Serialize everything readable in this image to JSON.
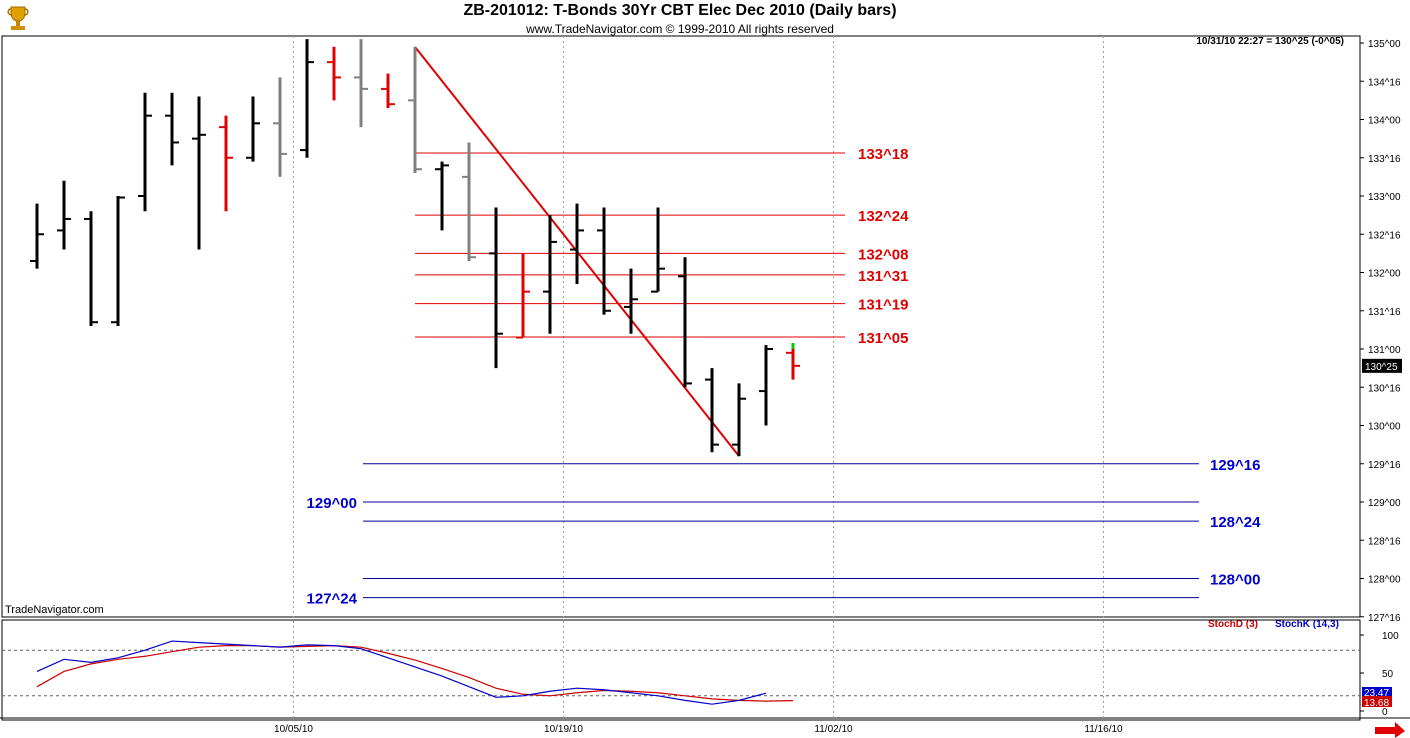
{
  "header": {
    "title": "ZB-201012:  T-Bonds 30Yr CBT Elec Dec 2010  (Daily bars)",
    "subtitle": "www.TradeNavigator.com © 1999-2010 All rights reserved",
    "readout": "10/31/10 22:27 = 130^25 (-0^05)",
    "brand": "TradeNavigator.com",
    "logo_icon": "trophy-icon"
  },
  "colors": {
    "up_bar": "#000000",
    "down_bar": "#e00000",
    "gray_bar": "#808080",
    "resistance": "#e00000",
    "support": "#000099",
    "stochD": "#cc0000",
    "stochK": "#0000cc",
    "grid": "#a0a0a0"
  },
  "chart_data": [
    {
      "type": "ohlc",
      "title": "ZB-201012:  T-Bonds 30Yr CBT Elec Dec 2010  (Daily bars)",
      "ylim": [
        127.375,
        135.0625
      ],
      "y_ticks": [
        {
          "v": 135.0,
          "label": "135^00"
        },
        {
          "v": 134.5,
          "label": "134^16"
        },
        {
          "v": 134.0,
          "label": "134^00"
        },
        {
          "v": 133.5,
          "label": "133^16"
        },
        {
          "v": 133.0,
          "label": "133^00"
        },
        {
          "v": 132.5,
          "label": "132^16"
        },
        {
          "v": 132.0,
          "label": "132^00"
        },
        {
          "v": 131.5,
          "label": "131^16"
        },
        {
          "v": 131.0,
          "label": "131^00"
        },
        {
          "v": 130.5,
          "label": "130^16"
        },
        {
          "v": 130.0,
          "label": "130^00"
        },
        {
          "v": 129.5,
          "label": "129^16"
        },
        {
          "v": 129.0,
          "label": "129^00"
        },
        {
          "v": 128.5,
          "label": "128^16"
        },
        {
          "v": 128.0,
          "label": "128^00"
        },
        {
          "v": 127.5,
          "label": "127^16"
        }
      ],
      "x_ticks": [
        {
          "i": 9.5,
          "label": "10/05/10"
        },
        {
          "i": 19.5,
          "label": "10/19/10"
        },
        {
          "i": 29.5,
          "label": "11/02/10"
        },
        {
          "i": 39.5,
          "label": "11/16/10"
        }
      ],
      "last_price": {
        "v": 130.78,
        "label": "130^25"
      },
      "bars": [
        {
          "i": 0.0,
          "o": 132.15,
          "h": 132.9,
          "l": 132.05,
          "c": 132.5,
          "color": "up"
        },
        {
          "i": 1.0,
          "o": 132.55,
          "h": 133.2,
          "l": 132.3,
          "c": 132.7,
          "color": "up"
        },
        {
          "i": 2.0,
          "o": 132.7,
          "h": 132.8,
          "l": 131.3,
          "c": 131.35,
          "color": "up"
        },
        {
          "i": 3.0,
          "o": 131.35,
          "h": 133.0,
          "l": 131.3,
          "c": 132.98,
          "color": "up"
        },
        {
          "i": 4.0,
          "o": 133.0,
          "h": 134.35,
          "l": 132.8,
          "c": 134.05,
          "color": "up"
        },
        {
          "i": 5.0,
          "o": 134.05,
          "h": 134.35,
          "l": 133.4,
          "c": 133.7,
          "color": "up"
        },
        {
          "i": 6.0,
          "o": 133.75,
          "h": 134.3,
          "l": 132.3,
          "c": 133.8,
          "color": "up"
        },
        {
          "i": 7.0,
          "o": 133.9,
          "h": 134.05,
          "l": 132.8,
          "c": 133.5,
          "color": "down"
        },
        {
          "i": 8.0,
          "o": 133.5,
          "h": 134.3,
          "l": 133.45,
          "c": 133.95,
          "color": "up"
        },
        {
          "i": 9.0,
          "o": 133.95,
          "h": 134.55,
          "l": 133.25,
          "c": 133.55,
          "color": "gray"
        },
        {
          "i": 10.0,
          "o": 133.6,
          "h": 135.05,
          "l": 133.5,
          "c": 134.75,
          "color": "up"
        },
        {
          "i": 11.0,
          "o": 134.75,
          "h": 134.95,
          "l": 134.25,
          "c": 134.55,
          "color": "down"
        },
        {
          "i": 12.0,
          "o": 134.55,
          "h": 135.05,
          "l": 133.9,
          "c": 134.4,
          "color": "gray"
        },
        {
          "i": 13.0,
          "o": 134.4,
          "h": 134.6,
          "l": 134.15,
          "c": 134.2,
          "color": "down"
        },
        {
          "i": 14.0,
          "o": 134.25,
          "h": 134.95,
          "l": 133.3,
          "c": 133.35,
          "color": "gray"
        },
        {
          "i": 15.0,
          "o": 133.35,
          "h": 133.45,
          "l": 132.55,
          "c": 133.4,
          "color": "up"
        },
        {
          "i": 16.0,
          "o": 133.25,
          "h": 133.7,
          "l": 132.15,
          "c": 132.2,
          "color": "gray"
        },
        {
          "i": 17.0,
          "o": 132.25,
          "h": 132.85,
          "l": 130.75,
          "c": 131.2,
          "color": "up"
        },
        {
          "i": 18.0,
          "o": 131.15,
          "h": 132.25,
          "l": 131.15,
          "c": 131.75,
          "color": "down"
        },
        {
          "i": 19.0,
          "o": 131.75,
          "h": 132.75,
          "l": 131.2,
          "c": 132.4,
          "color": "up"
        },
        {
          "i": 20.0,
          "o": 132.3,
          "h": 132.9,
          "l": 131.85,
          "c": 132.55,
          "color": "up"
        },
        {
          "i": 21.0,
          "o": 132.55,
          "h": 132.85,
          "l": 131.45,
          "c": 131.5,
          "color": "up"
        },
        {
          "i": 22.0,
          "o": 131.55,
          "h": 132.05,
          "l": 131.2,
          "c": 131.65,
          "color": "up"
        },
        {
          "i": 23.0,
          "o": 131.75,
          "h": 132.85,
          "l": 131.75,
          "c": 132.05,
          "color": "up"
        },
        {
          "i": 24.0,
          "o": 131.95,
          "h": 132.2,
          "l": 130.5,
          "c": 130.55,
          "color": "up"
        },
        {
          "i": 25.0,
          "o": 130.6,
          "h": 130.75,
          "l": 129.65,
          "c": 129.75,
          "color": "up"
        },
        {
          "i": 26.0,
          "o": 129.75,
          "h": 130.55,
          "l": 129.6,
          "c": 130.35,
          "color": "up"
        },
        {
          "i": 27.0,
          "o": 130.45,
          "h": 131.05,
          "l": 130.0,
          "c": 131.0,
          "color": "up"
        },
        {
          "i": 28.0,
          "o": 130.95,
          "h": 131.0,
          "l": 130.6,
          "c": 130.78,
          "color": "down"
        }
      ],
      "trendline": {
        "i1": 14.0,
        "v1": 134.95,
        "i2": 26.0,
        "v2": 129.6
      },
      "resistance_levels": [
        {
          "v": 133.5625,
          "label": "133^18"
        },
        {
          "v": 132.75,
          "label": "132^24"
        },
        {
          "v": 132.25,
          "label": "132^08"
        },
        {
          "v": 131.96875,
          "label": "131^31"
        },
        {
          "v": 131.59375,
          "label": "131^19"
        },
        {
          "v": 131.15625,
          "label": "131^05"
        }
      ],
      "support_levels": [
        {
          "v": 129.5,
          "label": "129^16",
          "side": "right"
        },
        {
          "v": 129.0,
          "label": "129^00",
          "side": "left"
        },
        {
          "v": 128.75,
          "label": "128^24",
          "side": "right"
        },
        {
          "v": 128.0,
          "label": "128^00",
          "side": "right"
        },
        {
          "v": 127.75,
          "label": "127^24",
          "side": "left"
        }
      ]
    },
    {
      "type": "line",
      "title": "",
      "ylim": [
        0,
        100
      ],
      "y_ticks": [
        {
          "v": 100,
          "label": "100"
        },
        {
          "v": 50,
          "label": "50"
        },
        {
          "v": 0,
          "label": "0"
        }
      ],
      "dashed_levels": [
        80,
        20
      ],
      "legend": [
        "StochD (3)",
        "StochK (14,3)"
      ],
      "last_values": {
        "k_label": "23.47",
        "d_label": "13.68"
      },
      "series": [
        {
          "name": "StochD (3)",
          "color": "red",
          "points": [
            [
              0,
              32
            ],
            [
              1,
              52
            ],
            [
              2,
              62
            ],
            [
              3,
              68
            ],
            [
              4,
              72
            ],
            [
              5,
              78
            ],
            [
              6,
              84
            ],
            [
              7,
              86
            ],
            [
              8,
              86
            ],
            [
              9,
              84
            ],
            [
              10,
              85
            ],
            [
              11,
              86
            ],
            [
              12,
              84
            ],
            [
              13,
              76
            ],
            [
              14,
              67
            ],
            [
              15,
              56
            ],
            [
              16,
              44
            ],
            [
              17,
              30
            ],
            [
              18,
              22
            ],
            [
              19,
              20
            ],
            [
              20,
              24
            ],
            [
              21,
              27
            ],
            [
              22,
              26
            ],
            [
              23,
              24
            ],
            [
              24,
              20
            ],
            [
              25,
              16
            ],
            [
              26,
              14
            ],
            [
              27,
              13
            ],
            [
              28,
              13.68
            ]
          ]
        },
        {
          "name": "StochK (14,3)",
          "color": "blue",
          "points": [
            [
              0,
              52
            ],
            [
              1,
              68
            ],
            [
              2,
              64
            ],
            [
              3,
              70
            ],
            [
              4,
              80
            ],
            [
              5,
              92
            ],
            [
              6,
              90
            ],
            [
              7,
              88
            ],
            [
              8,
              86
            ],
            [
              9,
              84
            ],
            [
              10,
              87
            ],
            [
              11,
              86
            ],
            [
              12,
              82
            ],
            [
              13,
              70
            ],
            [
              14,
              58
            ],
            [
              15,
              46
            ],
            [
              16,
              32
            ],
            [
              17,
              18
            ],
            [
              18,
              20
            ],
            [
              19,
              26
            ],
            [
              20,
              30
            ],
            [
              21,
              28
            ],
            [
              22,
              24
            ],
            [
              23,
              20
            ],
            [
              24,
              14
            ],
            [
              25,
              9
            ],
            [
              26,
              14
            ],
            [
              27,
              23.47
            ]
          ]
        }
      ]
    }
  ]
}
